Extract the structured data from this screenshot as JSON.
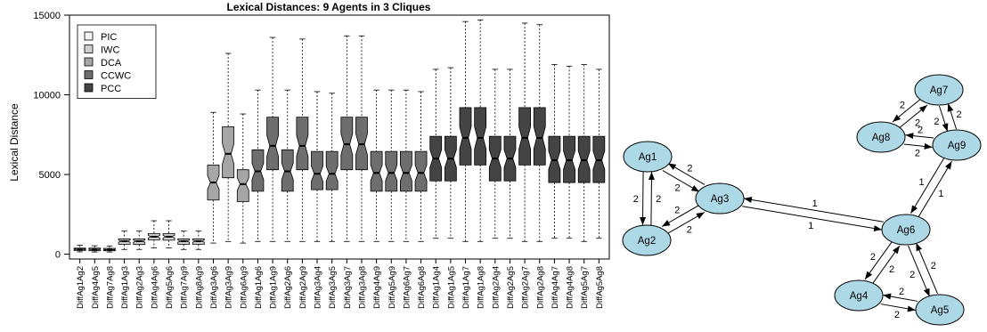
{
  "chart_data": {
    "type": "boxplot",
    "title": "Lexical Distances: 9 Agents in 3 Cliques",
    "ylabel": "Lexical Distance",
    "xlabel": "",
    "ylim": [
      -300,
      15000
    ],
    "yticks": [
      0,
      5000,
      10000,
      15000
    ],
    "legend_position": "top-left",
    "legend": [
      {
        "name": "PIC",
        "color": "#f4f4f4"
      },
      {
        "name": "IWC",
        "color": "#cfcfcf"
      },
      {
        "name": "DCA",
        "color": "#a6a6a6"
      },
      {
        "name": "CCWC",
        "color": "#6e6e6e"
      },
      {
        "name": "PCC",
        "color": "#444444"
      }
    ],
    "boxes": [
      {
        "label": "DiffAg1Ag2",
        "group": 0,
        "min": 150,
        "q1": 230,
        "median": 310,
        "q3": 380,
        "max": 560
      },
      {
        "label": "DiffAg4Ag5",
        "group": 0,
        "min": 140,
        "q1": 220,
        "median": 300,
        "q3": 380,
        "max": 530
      },
      {
        "label": "DiffAg7Ag8",
        "group": 0,
        "min": 140,
        "q1": 220,
        "median": 290,
        "q3": 370,
        "max": 520
      },
      {
        "label": "DiffAg1Ag3",
        "group": 1,
        "min": 300,
        "q1": 620,
        "median": 820,
        "q3": 960,
        "max": 1450
      },
      {
        "label": "DiffAg2Ag3",
        "group": 1,
        "min": 300,
        "q1": 610,
        "median": 820,
        "q3": 960,
        "max": 1450
      },
      {
        "label": "DiffAg4Ag6",
        "group": 1,
        "min": 400,
        "q1": 900,
        "median": 1100,
        "q3": 1300,
        "max": 2100
      },
      {
        "label": "DiffAg5Ag6",
        "group": 1,
        "min": 400,
        "q1": 880,
        "median": 1100,
        "q3": 1300,
        "max": 2100
      },
      {
        "label": "DiffAg7Ag9",
        "group": 1,
        "min": 300,
        "q1": 620,
        "median": 820,
        "q3": 960,
        "max": 1450
      },
      {
        "label": "DiffAg8Ag9",
        "group": 1,
        "min": 300,
        "q1": 620,
        "median": 820,
        "q3": 960,
        "max": 1450
      },
      {
        "label": "DiffAg3Ag6",
        "group": 2,
        "min": 700,
        "q1": 3400,
        "median": 4500,
        "q3": 5600,
        "max": 8900
      },
      {
        "label": "DiffAg3Ag9",
        "group": 2,
        "min": 800,
        "q1": 4800,
        "median": 6300,
        "q3": 8000,
        "max": 12600
      },
      {
        "label": "DiffAg6Ag9",
        "group": 2,
        "min": 700,
        "q1": 3300,
        "median": 4400,
        "q3": 5300,
        "max": 8800
      },
      {
        "label": "DiffAg1Ag6",
        "group": 3,
        "min": 800,
        "q1": 3950,
        "median": 5200,
        "q3": 6550,
        "max": 10300
      },
      {
        "label": "DiffAg1Ag9",
        "group": 3,
        "min": 800,
        "q1": 5300,
        "median": 6800,
        "q3": 8600,
        "max": 13600
      },
      {
        "label": "DiffAg2Ag6",
        "group": 3,
        "min": 800,
        "q1": 3950,
        "median": 5200,
        "q3": 6550,
        "max": 10300
      },
      {
        "label": "DiffAg2Ag9",
        "group": 3,
        "min": 800,
        "q1": 5300,
        "median": 6800,
        "q3": 8600,
        "max": 13500
      },
      {
        "label": "DiffAg3Ag4",
        "group": 3,
        "min": 800,
        "q1": 4050,
        "median": 5050,
        "q3": 6450,
        "max": 10200
      },
      {
        "label": "DiffAg3Ag5",
        "group": 3,
        "min": 800,
        "q1": 4050,
        "median": 5050,
        "q3": 6450,
        "max": 10100
      },
      {
        "label": "DiffAg3Ag7",
        "group": 3,
        "min": 800,
        "q1": 5300,
        "median": 6900,
        "q3": 8600,
        "max": 13700
      },
      {
        "label": "DiffAg3Ag8",
        "group": 3,
        "min": 800,
        "q1": 5300,
        "median": 6900,
        "q3": 8600,
        "max": 13700
      },
      {
        "label": "DiffAg4Ag9",
        "group": 3,
        "min": 800,
        "q1": 3950,
        "median": 5100,
        "q3": 6450,
        "max": 10300
      },
      {
        "label": "DiffAg5Ag9",
        "group": 3,
        "min": 800,
        "q1": 3950,
        "median": 5100,
        "q3": 6450,
        "max": 10300
      },
      {
        "label": "DiffAg6Ag7",
        "group": 3,
        "min": 800,
        "q1": 3950,
        "median": 5100,
        "q3": 6450,
        "max": 10300
      },
      {
        "label": "DiffAg6Ag8",
        "group": 3,
        "min": 800,
        "q1": 3950,
        "median": 5100,
        "q3": 6450,
        "max": 10200
      },
      {
        "label": "DiffAg1Ag4",
        "group": 4,
        "min": 1000,
        "q1": 4600,
        "median": 6000,
        "q3": 7400,
        "max": 11600
      },
      {
        "label": "DiffAg1Ag5",
        "group": 4,
        "min": 1000,
        "q1": 4600,
        "median": 6000,
        "q3": 7400,
        "max": 11700
      },
      {
        "label": "DiffAg1Ag7",
        "group": 4,
        "min": 800,
        "q1": 5600,
        "median": 7300,
        "q3": 9200,
        "max": 14600
      },
      {
        "label": "DiffAg1Ag8",
        "group": 4,
        "min": 800,
        "q1": 5600,
        "median": 7300,
        "q3": 9200,
        "max": 14700
      },
      {
        "label": "DiffAg2Ag4",
        "group": 4,
        "min": 1000,
        "q1": 4600,
        "median": 6000,
        "q3": 7400,
        "max": 11600
      },
      {
        "label": "DiffAg2Ag5",
        "group": 4,
        "min": 1000,
        "q1": 4600,
        "median": 6000,
        "q3": 7400,
        "max": 11600
      },
      {
        "label": "DiffAg2Ag7",
        "group": 4,
        "min": 800,
        "q1": 5600,
        "median": 7300,
        "q3": 9200,
        "max": 14500
      },
      {
        "label": "DiffAg2Ag8",
        "group": 4,
        "min": 800,
        "q1": 5600,
        "median": 7300,
        "q3": 9200,
        "max": 14400
      },
      {
        "label": "DiffAg4Ag7",
        "group": 4,
        "min": 1000,
        "q1": 4500,
        "median": 5900,
        "q3": 7400,
        "max": 11900
      },
      {
        "label": "DiffAg4Ag8",
        "group": 4,
        "min": 1000,
        "q1": 4500,
        "median": 5900,
        "q3": 7400,
        "max": 11800
      },
      {
        "label": "DiffAg5Ag7",
        "group": 4,
        "min": 800,
        "q1": 4500,
        "median": 5900,
        "q3": 7400,
        "max": 11900
      },
      {
        "label": "DiffAg5Ag8",
        "group": 4,
        "min": 1000,
        "q1": 4500,
        "median": 5900,
        "q3": 7400,
        "max": 11600
      }
    ]
  },
  "graph": {
    "node_color": "#add8e6",
    "nodes": [
      {
        "id": "Ag1",
        "label": "Ag1"
      },
      {
        "id": "Ag2",
        "label": "Ag2"
      },
      {
        "id": "Ag3",
        "label": "Ag3"
      },
      {
        "id": "Ag4",
        "label": "Ag4"
      },
      {
        "id": "Ag5",
        "label": "Ag5"
      },
      {
        "id": "Ag6",
        "label": "Ag6"
      },
      {
        "id": "Ag7",
        "label": "Ag7"
      },
      {
        "id": "Ag8",
        "label": "Ag8"
      },
      {
        "id": "Ag9",
        "label": "Ag9"
      }
    ],
    "edges": [
      {
        "from": "Ag1",
        "to": "Ag2",
        "weight": "2"
      },
      {
        "from": "Ag2",
        "to": "Ag1",
        "weight": "2"
      },
      {
        "from": "Ag1",
        "to": "Ag3",
        "weight": "2"
      },
      {
        "from": "Ag3",
        "to": "Ag1",
        "weight": "2"
      },
      {
        "from": "Ag2",
        "to": "Ag3",
        "weight": "2"
      },
      {
        "from": "Ag3",
        "to": "Ag2",
        "weight": "2"
      },
      {
        "from": "Ag3",
        "to": "Ag6",
        "weight": "1"
      },
      {
        "from": "Ag6",
        "to": "Ag3",
        "weight": "1"
      },
      {
        "from": "Ag6",
        "to": "Ag9",
        "weight": "1"
      },
      {
        "from": "Ag9",
        "to": "Ag6",
        "weight": "1"
      },
      {
        "from": "Ag4",
        "to": "Ag6",
        "weight": "2"
      },
      {
        "from": "Ag6",
        "to": "Ag4",
        "weight": "2"
      },
      {
        "from": "Ag5",
        "to": "Ag6",
        "weight": "2"
      },
      {
        "from": "Ag6",
        "to": "Ag5",
        "weight": "2"
      },
      {
        "from": "Ag4",
        "to": "Ag5",
        "weight": "2"
      },
      {
        "from": "Ag5",
        "to": "Ag4",
        "weight": "2"
      },
      {
        "from": "Ag7",
        "to": "Ag8",
        "weight": "2"
      },
      {
        "from": "Ag8",
        "to": "Ag7",
        "weight": "2"
      },
      {
        "from": "Ag7",
        "to": "Ag9",
        "weight": "2"
      },
      {
        "from": "Ag9",
        "to": "Ag7",
        "weight": "2"
      },
      {
        "from": "Ag8",
        "to": "Ag9",
        "weight": "2"
      },
      {
        "from": "Ag9",
        "to": "Ag8",
        "weight": "2"
      }
    ]
  }
}
